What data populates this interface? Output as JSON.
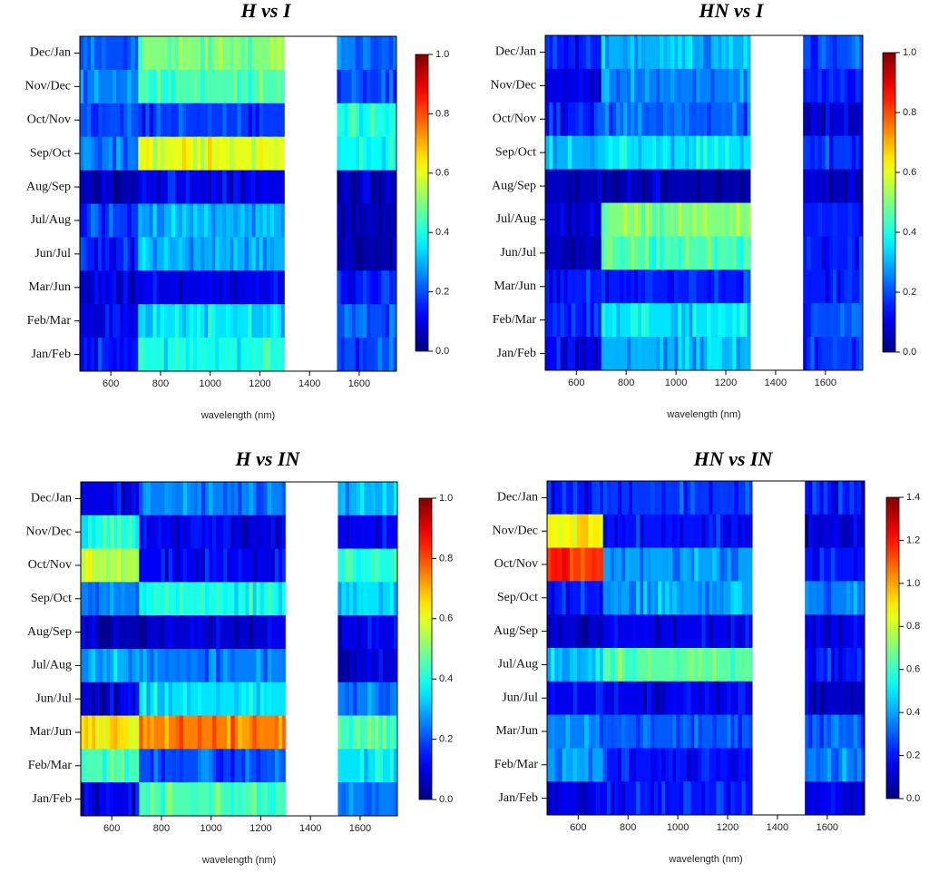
{
  "chart_data": [
    {
      "type": "heatmap",
      "title": "H vs I",
      "xlabel": "wavelength (nm)",
      "xlim": [
        475,
        1750
      ],
      "x_ticks": [
        600,
        800,
        1000,
        1200,
        1400,
        1600
      ],
      "x_tick_labels": [
        "600",
        "800",
        "1000",
        "1200",
        "1400",
        "1600"
      ],
      "gap": [
        1300,
        1510
      ],
      "rows_top_to_bottom": [
        "Dec/Jan",
        "Nov/Dec",
        "Oct/Nov",
        "Sep/Oct",
        "Aug/Sep",
        "Jul/Aug",
        "Jun/Jul",
        "Mar/Jun",
        "Feb/Mar",
        "Jan/Feb"
      ],
      "segments": [
        [
          475,
          710
        ],
        [
          710,
          1300
        ],
        [
          1510,
          1750
        ]
      ],
      "values": [
        [
          0.2,
          0.5,
          0.25
        ],
        [
          0.25,
          0.45,
          0.2
        ],
        [
          0.2,
          0.18,
          0.4
        ],
        [
          0.25,
          0.6,
          0.38
        ],
        [
          0.05,
          0.1,
          0.06
        ],
        [
          0.18,
          0.3,
          0.06
        ],
        [
          0.15,
          0.3,
          0.05
        ],
        [
          0.08,
          0.1,
          0.15
        ],
        [
          0.1,
          0.35,
          0.2
        ],
        [
          0.15,
          0.4,
          0.2
        ]
      ],
      "colorbar": {
        "min": 0.0,
        "max": 1.0,
        "ticks": [
          "0.0",
          "0.2",
          "0.4",
          "0.6",
          "0.8",
          "1.0"
        ]
      }
    },
    {
      "type": "heatmap",
      "title": "HN vs I",
      "xlabel": "wavelength (nm)",
      "xlim": [
        475,
        1750
      ],
      "x_ticks": [
        600,
        800,
        1000,
        1200,
        1400,
        1600
      ],
      "x_tick_labels": [
        "600",
        "800",
        "1000",
        "1200",
        "1400",
        "1600"
      ],
      "gap": [
        1300,
        1510
      ],
      "rows_top_to_bottom": [
        "Dec/Jan",
        "Nov/Dec",
        "Oct/Nov",
        "Sep/Oct",
        "Aug/Sep",
        "Jul/Aug",
        "Jun/Jul",
        "Mar/Jun",
        "Feb/Mar",
        "Jan/Feb"
      ],
      "segments": [
        [
          475,
          700
        ],
        [
          700,
          1300
        ],
        [
          1510,
          1750
        ]
      ],
      "values": [
        [
          0.15,
          0.3,
          0.2
        ],
        [
          0.1,
          0.25,
          0.15
        ],
        [
          0.15,
          0.22,
          0.08
        ],
        [
          0.3,
          0.35,
          0.18
        ],
        [
          0.06,
          0.05,
          0.08
        ],
        [
          0.08,
          0.5,
          0.15
        ],
        [
          0.05,
          0.45,
          0.15
        ],
        [
          0.15,
          0.15,
          0.15
        ],
        [
          0.15,
          0.35,
          0.2
        ],
        [
          0.12,
          0.3,
          0.18
        ]
      ],
      "colorbar": {
        "min": 0.0,
        "max": 1.0,
        "ticks": [
          "0.0",
          "0.2",
          "0.4",
          "0.6",
          "0.8",
          "1.0"
        ]
      }
    },
    {
      "type": "heatmap",
      "title": "H vs IN",
      "xlabel": "wavelength (nm)",
      "xlim": [
        475,
        1750
      ],
      "x_ticks": [
        600,
        800,
        1000,
        1200,
        1400,
        1600
      ],
      "x_tick_labels": [
        "600",
        "800",
        "1000",
        "1200",
        "1400",
        "1600"
      ],
      "gap": [
        1300,
        1510
      ],
      "rows_top_to_bottom": [
        "Dec/Jan",
        "Nov/Dec",
        "Oct/Nov",
        "Sep/Oct",
        "Aug/Sep",
        "Jul/Aug",
        "Jun/Jul",
        "Mar/Jun",
        "Feb/Mar",
        "Jan/Feb"
      ],
      "segments": [
        [
          475,
          710
        ],
        [
          710,
          1300
        ],
        [
          1510,
          1750
        ]
      ],
      "values": [
        [
          0.1,
          0.25,
          0.3
        ],
        [
          0.4,
          0.1,
          0.12
        ],
        [
          0.55,
          0.12,
          0.4
        ],
        [
          0.25,
          0.4,
          0.35
        ],
        [
          0.05,
          0.08,
          0.1
        ],
        [
          0.3,
          0.25,
          0.08
        ],
        [
          0.08,
          0.35,
          0.25
        ],
        [
          0.65,
          0.75,
          0.45
        ],
        [
          0.45,
          0.2,
          0.35
        ],
        [
          0.1,
          0.45,
          0.25
        ]
      ],
      "colorbar": {
        "min": 0.0,
        "max": 1.0,
        "ticks": [
          "0.0",
          "0.2",
          "0.4",
          "0.6",
          "0.8",
          "1.0"
        ]
      }
    },
    {
      "type": "heatmap",
      "title": "HN vs IN",
      "xlabel": "wavelength (nm)",
      "xlim": [
        475,
        1750
      ],
      "x_ticks": [
        600,
        800,
        1000,
        1200,
        1400,
        1600
      ],
      "x_tick_labels": [
        "600",
        "800",
        "1000",
        "1200",
        "1400",
        "1600"
      ],
      "gap": [
        1300,
        1510
      ],
      "rows_top_to_bottom": [
        "Dec/Jan",
        "Nov/Dec",
        "Oct/Nov",
        "Sep/Oct",
        "Aug/Sep",
        "Jul/Aug",
        "Jun/Jul",
        "Mar/Jun",
        "Feb/Mar",
        "Jan/Feb"
      ],
      "segments": [
        [
          475,
          700
        ],
        [
          700,
          1300
        ],
        [
          1510,
          1750
        ]
      ],
      "values": [
        [
          0.2,
          0.25,
          0.2
        ],
        [
          0.9,
          0.2,
          0.12
        ],
        [
          1.15,
          0.4,
          0.2
        ],
        [
          0.2,
          0.4,
          0.35
        ],
        [
          0.12,
          0.15,
          0.15
        ],
        [
          0.45,
          0.65,
          0.2
        ],
        [
          0.15,
          0.15,
          0.1
        ],
        [
          0.35,
          0.3,
          0.3
        ],
        [
          0.4,
          0.2,
          0.35
        ],
        [
          0.15,
          0.2,
          0.15
        ]
      ],
      "colorbar": {
        "min": 0.0,
        "max": 1.4,
        "ticks": [
          "0.0",
          "0.2",
          "0.4",
          "0.6",
          "0.8",
          "1.0",
          "1.2",
          "1.4"
        ]
      }
    }
  ]
}
